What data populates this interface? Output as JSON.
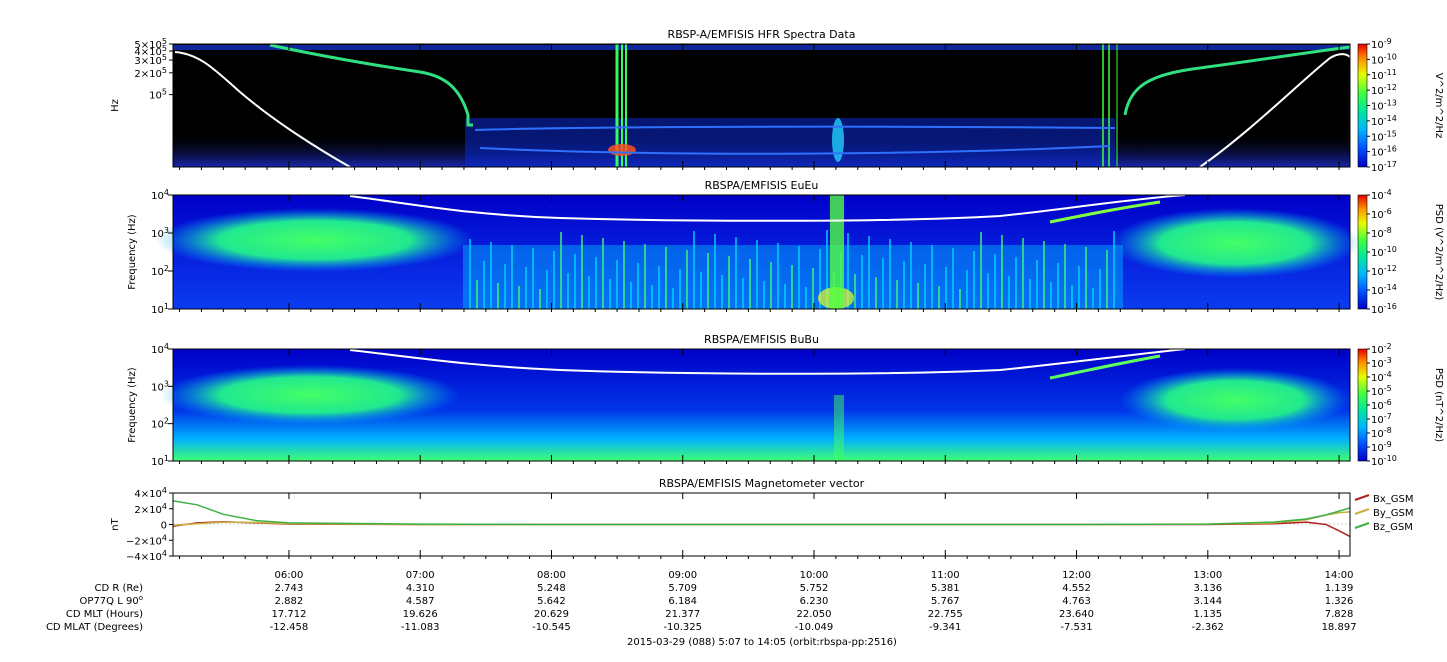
{
  "chart_data": [
    {
      "type": "heatmap",
      "title": "RBSP-A/EMFISIS  HFR Spectra Data",
      "ylabel": "Hz",
      "yscale": "log",
      "ylim": [
        10000,
        500000
      ],
      "ytick_values": [
        100000,
        200000,
        300000,
        400000,
        500000
      ],
      "ytick_labels": [
        "10^5",
        "2×10^5",
        "3×10^5",
        "4×10^5",
        "5×10^5"
      ],
      "colorbar": {
        "label": "V^2/m^2/Hz",
        "scale": "log",
        "range": [
          1e-17,
          1e-09
        ],
        "tick_labels": [
          "10^-9",
          "10^-10",
          "10^-11",
          "10^-12",
          "10^-13",
          "10^-14",
          "10^-15",
          "10^-16",
          "10^-17"
        ]
      },
      "overlay_line": "white"
    },
    {
      "type": "heatmap",
      "title": "RBSPA/EMFISIS  EuEu",
      "ylabel": "Frequency (Hz)",
      "yscale": "log",
      "ylim": [
        10,
        10000
      ],
      "ytick_labels": [
        "10^4",
        "10^3",
        "10^2",
        "10^1"
      ],
      "colorbar": {
        "label": "PSD (V^2/m^2/Hz)",
        "scale": "log",
        "range": [
          1e-16,
          0.0001
        ],
        "tick_labels": [
          "10^-4",
          "10^-6",
          "10^-8",
          "10^-10",
          "10^-12",
          "10^-14",
          "10^-16"
        ]
      },
      "overlay_line": "white"
    },
    {
      "type": "heatmap",
      "title": "RBSPA/EMFISIS  BuBu",
      "ylabel": "Frequency (Hz)",
      "yscale": "log",
      "ylim": [
        10,
        10000
      ],
      "ytick_labels": [
        "10^4",
        "10^3",
        "10^2",
        "10^1"
      ],
      "colorbar": {
        "label": "PSD (nT^2/Hz)",
        "scale": "log",
        "range": [
          1e-10,
          0.01
        ],
        "tick_labels": [
          "10^-2",
          "10^-3",
          "10^-4",
          "10^-5",
          "10^-6",
          "10^-7",
          "10^-8",
          "10^-9",
          "10^-10"
        ]
      },
      "overlay_line": "white"
    },
    {
      "type": "line",
      "title": "RBSPA/EMFISIS  Magnetometer vector",
      "ylabel": "nT",
      "ylim": [
        -40000,
        40000
      ],
      "ytick_values": [
        40000,
        20000,
        0,
        -20000,
        -40000
      ],
      "ytick_labels": [
        "4×10^4",
        "2×10^4",
        "0",
        "−2×10^4",
        "−4×10^4"
      ],
      "legend_position": "right",
      "x_hours": [
        5.12,
        5.3,
        5.5,
        5.75,
        6.0,
        7.0,
        8.0,
        9.0,
        10.0,
        11.0,
        12.0,
        13.0,
        13.5,
        13.75,
        13.9,
        14.0,
        14.08
      ],
      "series": [
        {
          "name": "Bx_GSM",
          "color": "#b22222",
          "values": [
            -2000,
            2000,
            3500,
            2000,
            500,
            0,
            0,
            0,
            0,
            0,
            0,
            0,
            1000,
            3000,
            0,
            -8000,
            -15000
          ]
        },
        {
          "name": "By_GSM",
          "color": "#c8b040",
          "values": [
            -1000,
            1000,
            3000,
            2500,
            1000,
            0,
            0,
            0,
            0,
            0,
            0,
            500,
            2000,
            6000,
            12000,
            15000,
            16000
          ]
        },
        {
          "name": "Bz_GSM",
          "color": "#3cb043",
          "values": [
            30000,
            25000,
            13000,
            5000,
            2000,
            500,
            0,
            0,
            0,
            0,
            0,
            500,
            3000,
            7000,
            12000,
            17000,
            21000
          ]
        }
      ]
    }
  ],
  "xaxis": {
    "tick_labels": [
      "06:00",
      "07:00",
      "08:00",
      "09:00",
      "10:00",
      "11:00",
      "12:00",
      "13:00",
      "14:00"
    ],
    "start_hour": 5.1167,
    "end_hour": 14.0833
  },
  "ephemeris": {
    "row_labels": [
      "CD R (Re)",
      "OP77Q L 90",
      "CD MLT (Hours)",
      "CD MLAT (Degrees)"
    ],
    "row_label_superscript": "o",
    "rows": [
      [
        "2.743",
        "4.310",
        "5.248",
        "5.709",
        "5.752",
        "5.381",
        "4.552",
        "3.136",
        "1.139"
      ],
      [
        "2.882",
        "4.587",
        "5.642",
        "6.184",
        "6.230",
        "5.767",
        "4.763",
        "3.144",
        "1.326"
      ],
      [
        "17.712",
        "19.626",
        "20.629",
        "21.377",
        "22.050",
        "22.755",
        "23.640",
        "1.135",
        "7.828"
      ],
      [
        "-12.458",
        "-11.083",
        "-10.545",
        "-10.325",
        "-10.049",
        "-9.341",
        "-7.531",
        "-2.362",
        "18.897"
      ]
    ]
  },
  "footer": "2015-03-29 (088) 5:07 to 14:05 (orbit:rbspa-pp:2516)"
}
